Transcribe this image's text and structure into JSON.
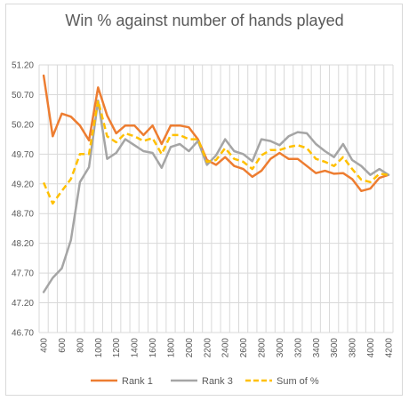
{
  "chart_data": {
    "type": "line",
    "title": "Win % against number of hands played",
    "xlabel": "",
    "ylabel": "",
    "x": [
      400,
      500,
      600,
      700,
      800,
      900,
      1000,
      1100,
      1200,
      1300,
      1400,
      1500,
      1600,
      1700,
      1800,
      1900,
      2000,
      2100,
      2200,
      2300,
      2400,
      2500,
      2600,
      2700,
      2800,
      2900,
      3000,
      3100,
      3200,
      3300,
      3400,
      3500,
      3600,
      3700,
      3800,
      3900,
      4000,
      4100,
      4200
    ],
    "x_tick_labels": [
      "400",
      "600",
      "800",
      "1000",
      "1200",
      "1400",
      "1600",
      "1800",
      "2000",
      "2200",
      "2400",
      "2600",
      "2800",
      "3000",
      "3200",
      "3400",
      "3600",
      "3800",
      "4000",
      "4200"
    ],
    "y_tick_labels": [
      "46.70",
      "47.20",
      "47.70",
      "48.20",
      "48.70",
      "49.20",
      "49.70",
      "50.20",
      "50.70",
      "51.20"
    ],
    "ylim": [
      46.7,
      51.2
    ],
    "grid": true,
    "legend_position": "bottom",
    "series": [
      {
        "name": "Rank 1",
        "color": "#ed7d31",
        "dash": "solid",
        "values": [
          51.02,
          50.0,
          50.38,
          50.33,
          50.18,
          49.93,
          50.82,
          50.35,
          50.05,
          50.18,
          50.18,
          50.02,
          50.18,
          49.87,
          50.18,
          50.18,
          50.15,
          49.95,
          49.6,
          49.52,
          49.65,
          49.5,
          49.45,
          49.32,
          49.42,
          49.62,
          49.72,
          49.62,
          49.62,
          49.5,
          49.38,
          49.42,
          49.37,
          49.38,
          49.28,
          49.08,
          49.12,
          49.3,
          49.35
        ]
      },
      {
        "name": "Rank 3",
        "color": "#a5a5a5",
        "dash": "solid",
        "values": [
          47.38,
          47.62,
          47.78,
          48.25,
          49.23,
          49.48,
          50.6,
          49.62,
          49.72,
          49.95,
          49.85,
          49.75,
          49.72,
          49.47,
          49.82,
          49.87,
          49.75,
          49.92,
          49.52,
          49.68,
          49.95,
          49.75,
          49.7,
          49.58,
          49.95,
          49.92,
          49.85,
          50.0,
          50.07,
          50.05,
          49.87,
          49.75,
          49.65,
          49.87,
          49.6,
          49.5,
          49.35,
          49.45,
          49.35
        ]
      },
      {
        "name": "Sum of %",
        "color": "#ffc000",
        "dash": "dashed",
        "values": [
          49.22,
          48.87,
          49.08,
          49.28,
          49.7,
          49.7,
          50.6,
          50.0,
          49.9,
          50.05,
          50.0,
          49.92,
          49.97,
          49.7,
          50.02,
          50.02,
          49.95,
          49.95,
          49.57,
          49.6,
          49.8,
          49.62,
          49.57,
          49.45,
          49.68,
          49.77,
          49.77,
          49.82,
          49.85,
          49.8,
          49.62,
          49.57,
          49.5,
          49.65,
          49.45,
          49.27,
          49.23,
          49.37,
          49.35
        ]
      }
    ]
  }
}
